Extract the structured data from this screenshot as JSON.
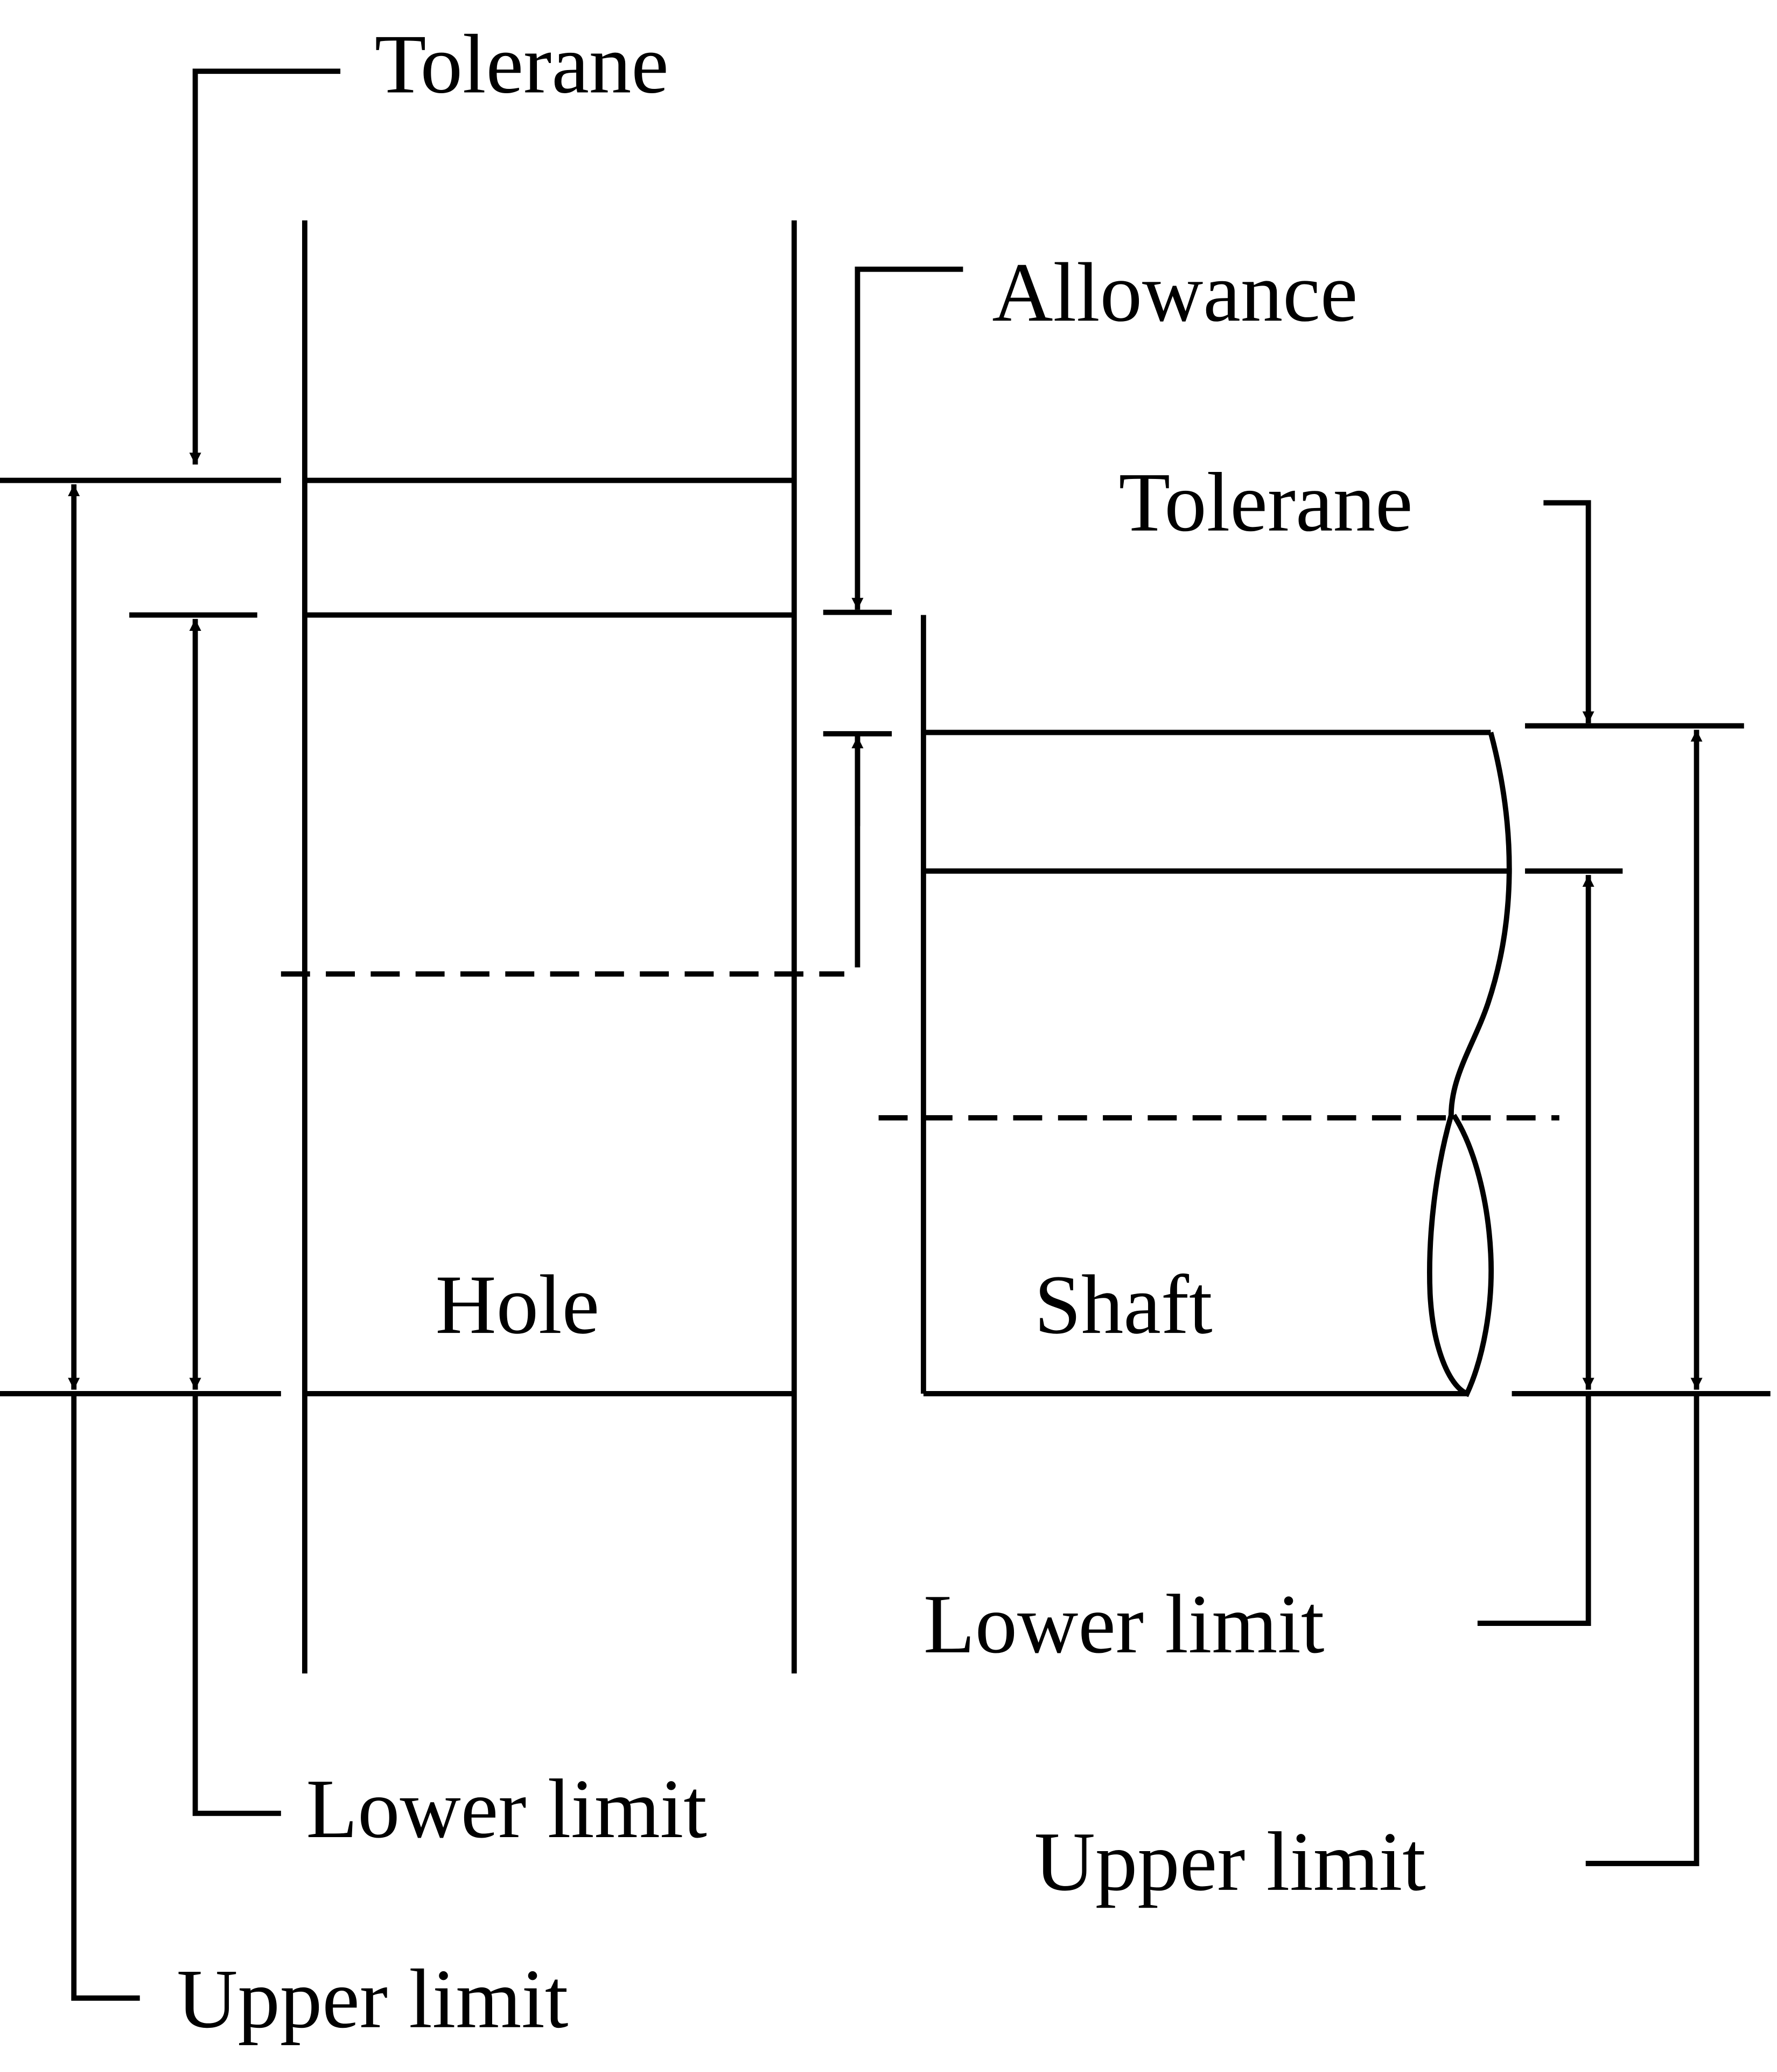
{
  "labels": {
    "hole_tolerance": "Tolerane",
    "allowance": "Allowance",
    "shaft_tolerance": "Tolerane",
    "hole": "Hole",
    "shaft": "Shaft",
    "shaft_lower_limit": "Lower limit",
    "hole_lower_limit": "Lower limit",
    "shaft_upper_limit": "Upper limit",
    "hole_upper_limit": "Upper limit"
  },
  "colors": {
    "line": "#000000",
    "background": "#ffffff"
  }
}
